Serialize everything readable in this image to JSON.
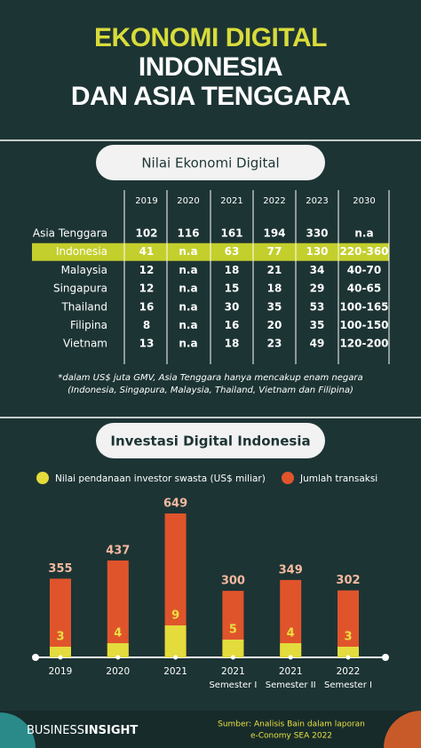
{
  "header": {
    "title_lines": [
      "EKONOMI DIGITAL",
      "INDONESIA",
      "DAN ASIA TENGGARA"
    ]
  },
  "table": {
    "title": "Nilai Ekonomi Digital",
    "columns": [
      2019,
      2020,
      2021,
      2022,
      2023,
      2030
    ],
    "rows": [
      {
        "label": "Asia Tenggara",
        "values": [
          102,
          116,
          161,
          194,
          330,
          "n.a"
        ]
      },
      {
        "label": "Indonesia",
        "values": [
          41,
          "n.a",
          63,
          77,
          130,
          "220-360"
        ],
        "highlight": true
      },
      {
        "label": "Malaysia",
        "values": [
          12,
          "n.a",
          18,
          21,
          34,
          "40-70"
        ]
      },
      {
        "label": "Singapura",
        "values": [
          12,
          "n.a",
          15,
          18,
          29,
          "40-65"
        ]
      },
      {
        "label": "Thailand",
        "values": [
          16,
          "n.a",
          30,
          35,
          53,
          "100-165"
        ]
      },
      {
        "label": "Filipina",
        "values": [
          8,
          "n.a",
          16,
          20,
          35,
          "100-150"
        ]
      },
      {
        "label": "Vietnam",
        "values": [
          13,
          "n.a",
          18,
          23,
          49,
          "120-200"
        ]
      }
    ],
    "notes": [
      "*dalam US$ juta GMV, Asia Tenggara hanya mencakup enam negara",
      "(Indonesia, Singapura, Malaysia, Thailand, Vietnam dan Filipina)"
    ]
  },
  "chart_data": {
    "type": "bar",
    "title": "Investasi Digital Indonesia",
    "categories": [
      "2019",
      "2020",
      "2021",
      "2021",
      "2021",
      "2022"
    ],
    "category_sublabels": [
      null,
      null,
      null,
      "Semester I",
      "Semester II",
      "Semester I"
    ],
    "series": [
      {
        "name": "Nilai pendanaan investor swasta (US$ miliar)",
        "color": "#e3dc3c",
        "values": [
          3,
          4,
          9,
          5,
          4,
          3
        ]
      },
      {
        "name": "Jumlah transaksi",
        "color": "#e0542c",
        "values": [
          355,
          437,
          649,
          300,
          349,
          302
        ]
      }
    ]
  },
  "footer": {
    "brand": [
      "BUSINESS",
      "INSIGHT"
    ],
    "source": [
      "Sumber: Analisis Bain dalam laporan",
      "e-Conomy SEA 2022"
    ]
  }
}
